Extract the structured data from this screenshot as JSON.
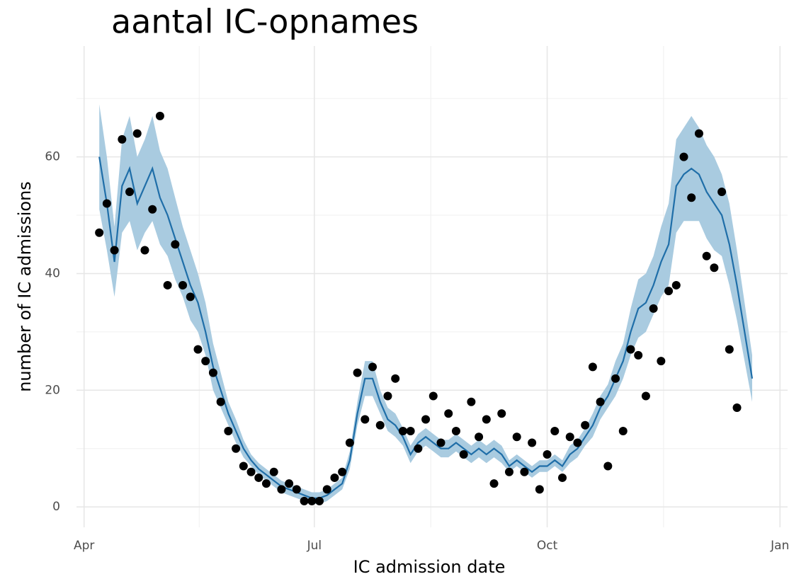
{
  "chart_data": {
    "type": "line",
    "title": "aantal IC-opnames",
    "x_label": "IC admission date",
    "y_label": "number of IC admissions",
    "x": [
      6,
      9,
      12,
      15,
      18,
      21,
      24,
      27,
      30,
      33,
      36,
      39,
      42,
      45,
      48,
      51,
      54,
      57,
      60,
      63,
      66,
      69,
      72,
      75,
      78,
      81,
      84,
      87,
      90,
      93,
      96,
      99,
      102,
      105,
      108,
      111,
      114,
      117,
      120,
      123,
      126,
      129,
      132,
      135,
      138,
      141,
      144,
      147,
      150,
      153,
      156,
      159,
      162,
      165,
      168,
      171,
      174,
      177,
      180,
      183,
      186,
      189,
      192,
      195,
      198,
      201,
      204,
      207,
      210,
      213,
      216,
      219,
      222,
      225,
      228,
      231,
      234,
      237,
      240,
      243,
      246,
      249,
      252,
      255,
      258,
      261,
      264
    ],
    "xlim": [
      -3,
      278
    ],
    "xticks": [
      {
        "value": 0,
        "label": "Apr"
      },
      {
        "value": 91,
        "label": "Jul"
      },
      {
        "value": 183,
        "label": "Oct"
      },
      {
        "value": 275,
        "label": "Jan"
      }
    ],
    "ylim": [
      -3.5,
      79
    ],
    "yticks": [
      0,
      20,
      40,
      60
    ],
    "grid": true,
    "series": [
      {
        "style": "points",
        "color": "#000000",
        "values": [
          47,
          52,
          44,
          63,
          54,
          64,
          44,
          51,
          67,
          38,
          45,
          38,
          36,
          27,
          25,
          23,
          18,
          13,
          10,
          7,
          6,
          5,
          4,
          6,
          3,
          4,
          3,
          1,
          1,
          1,
          3,
          5,
          6,
          11,
          23,
          15,
          24,
          14,
          19,
          22,
          13,
          13,
          10,
          15,
          19,
          11,
          16,
          13,
          9,
          18,
          12,
          15,
          4,
          16,
          6,
          12,
          6,
          11,
          3,
          9,
          13,
          5,
          12,
          11,
          14,
          24,
          18,
          7,
          22,
          13,
          27,
          26,
          19,
          34,
          25,
          37,
          38,
          60,
          53,
          64,
          43,
          41,
          54,
          27,
          17,
          null,
          null
        ]
      },
      {
        "style": "line",
        "color": "#1f6ea8",
        "band_color": "#a9cbe0",
        "values": [
          60,
          52,
          42,
          55,
          58,
          52,
          55,
          58,
          53,
          50,
          46,
          42,
          38,
          35,
          30,
          24,
          20,
          16,
          13,
          10,
          8,
          6.5,
          5.5,
          4.5,
          3.5,
          3,
          2.5,
          2,
          1.5,
          1.5,
          2,
          3,
          4,
          8,
          16,
          22,
          22,
          18,
          15,
          14,
          12,
          9,
          11,
          12,
          11,
          10,
          10,
          11,
          10,
          9,
          10,
          9,
          10,
          9,
          7,
          8,
          7,
          6,
          7,
          7,
          8,
          7,
          9,
          10,
          12,
          14,
          17,
          19,
          22,
          25,
          30,
          34,
          35,
          38,
          42,
          45,
          55,
          57,
          58,
          57,
          54,
          52,
          50,
          45,
          38,
          30,
          22
        ],
        "lower": [
          51,
          44,
          36,
          47,
          49,
          44,
          47,
          49,
          45,
          43,
          39,
          36,
          32,
          30,
          26,
          20,
          17,
          14,
          11,
          8.5,
          7,
          5.5,
          4.5,
          3.5,
          2.5,
          2,
          1.5,
          1,
          0.5,
          0.5,
          1,
          2,
          3,
          6.5,
          14,
          19,
          19,
          16,
          13,
          12,
          10.5,
          7.5,
          9.5,
          10.5,
          9.5,
          8.5,
          8.5,
          9.5,
          8.5,
          7.5,
          8.5,
          7.5,
          8.5,
          7.5,
          6,
          7,
          6,
          5,
          6,
          6,
          7,
          6,
          7.5,
          8.5,
          10.5,
          12,
          15,
          17,
          19,
          22,
          26,
          29,
          30,
          33,
          36,
          38,
          47,
          49,
          49,
          49,
          46,
          44,
          43,
          38,
          32,
          25,
          18
        ],
        "upper": [
          69,
          60,
          48,
          63,
          67,
          60,
          63,
          67,
          61,
          58,
          53,
          48,
          44,
          40,
          35,
          28,
          23,
          18,
          15,
          11.5,
          9,
          7.5,
          6.5,
          5.5,
          4.5,
          4,
          3.5,
          3,
          2.5,
          2.5,
          3,
          4,
          5,
          9.5,
          18,
          25,
          25,
          20,
          17,
          16,
          13.5,
          10.5,
          12.5,
          13.5,
          12.5,
          11.5,
          11.5,
          12.5,
          11.5,
          10.5,
          11.5,
          10.5,
          11.5,
          10.5,
          8,
          9,
          8,
          7,
          8,
          8,
          9,
          8,
          10.5,
          11.5,
          13.5,
          16,
          19,
          21,
          25,
          28,
          34,
          39,
          40,
          43,
          48,
          52,
          63,
          65,
          67,
          65,
          62,
          60,
          57,
          52,
          44,
          35,
          26
        ]
      }
    ]
  }
}
